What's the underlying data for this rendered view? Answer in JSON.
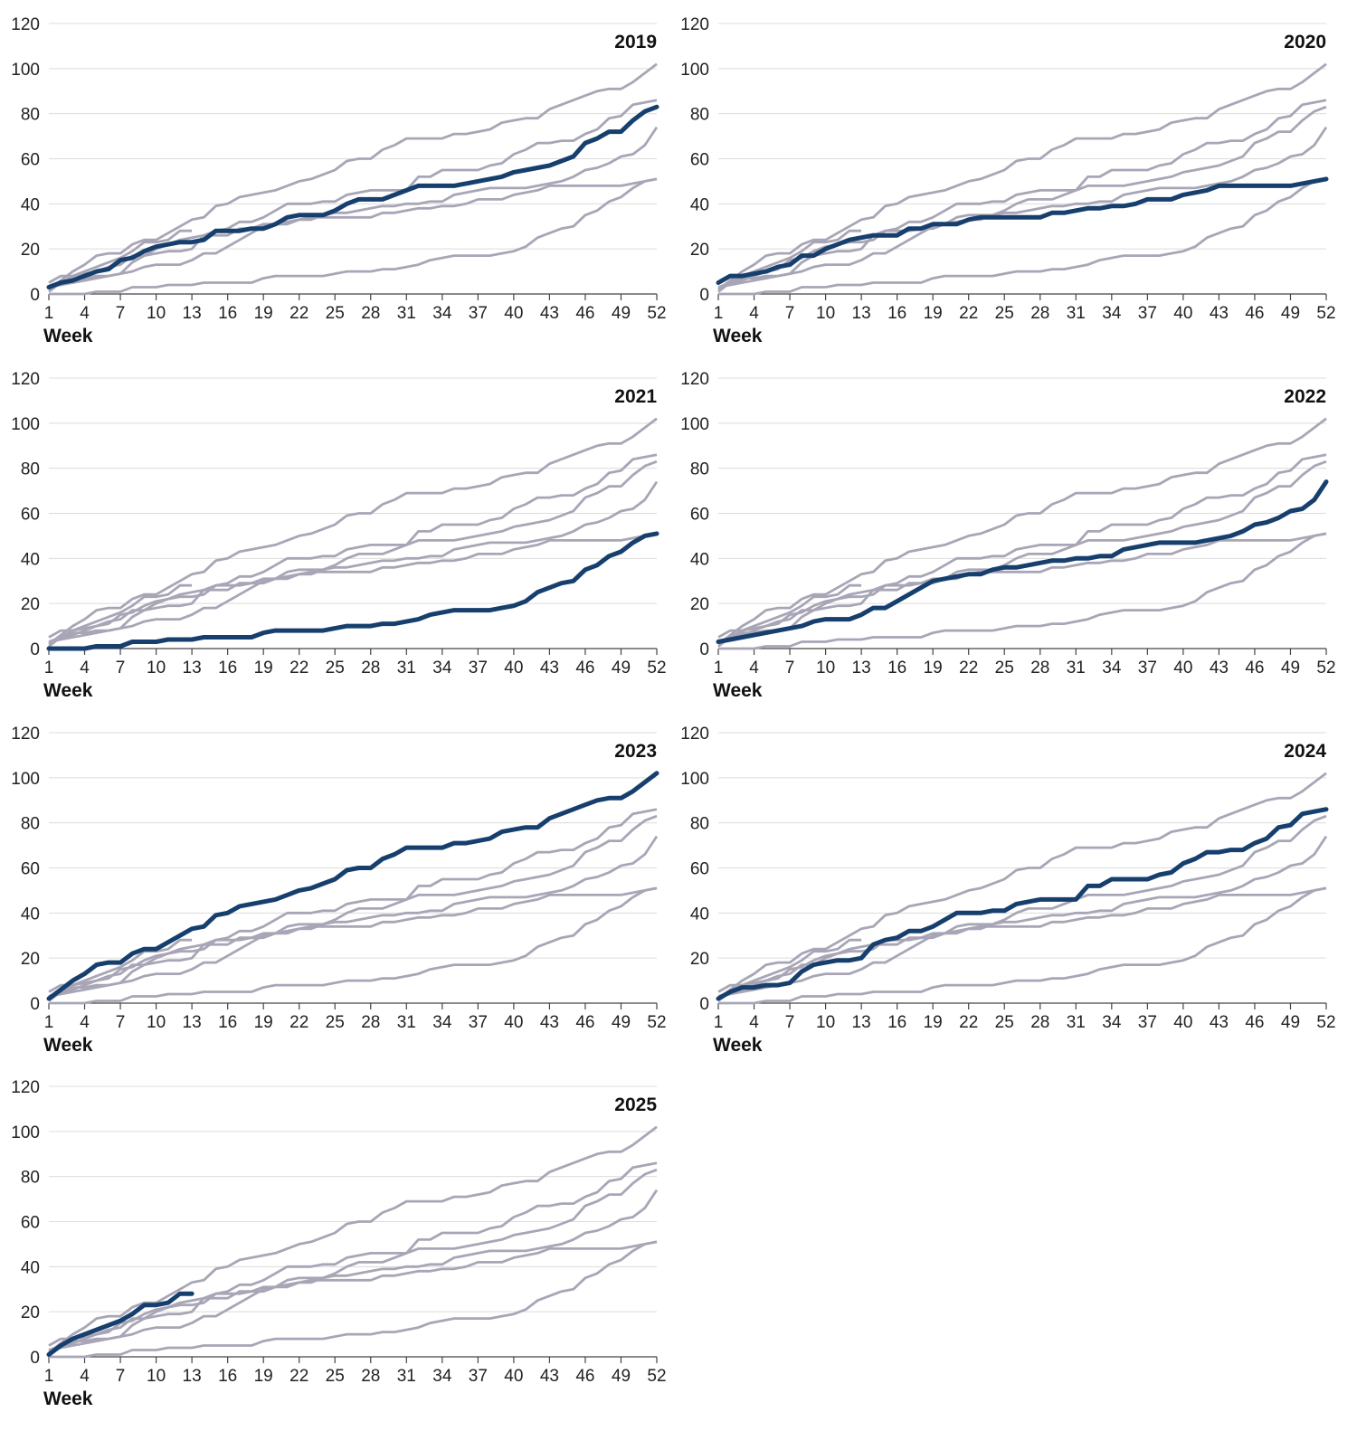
{
  "chart_data": {
    "type": "line",
    "xlabel": "Week",
    "ylabel": "",
    "ylim": [
      0,
      120
    ],
    "yticks": [
      0,
      20,
      40,
      60,
      80,
      100,
      120
    ],
    "xlim": [
      1,
      52
    ],
    "xticks": [
      1,
      4,
      7,
      10,
      13,
      16,
      19,
      22,
      25,
      28,
      31,
      34,
      37,
      40,
      43,
      46,
      49,
      52
    ],
    "grid": true,
    "layout": "small-multiples",
    "colors": {
      "highlight": "#163f6e",
      "other": "#a8a6b6",
      "grid": "#dcdcdc"
    },
    "panel_titles": [
      "2019",
      "2020",
      "2021",
      "2022",
      "2023",
      "2024",
      "2025"
    ],
    "series": [
      {
        "name": "2019",
        "x": [
          1,
          2,
          3,
          4,
          5,
          6,
          7,
          8,
          9,
          10,
          11,
          12,
          13,
          14,
          15,
          16,
          17,
          18,
          19,
          20,
          21,
          22,
          23,
          24,
          25,
          26,
          27,
          28,
          29,
          30,
          31,
          32,
          33,
          34,
          35,
          36,
          37,
          38,
          39,
          40,
          41,
          42,
          43,
          44,
          45,
          46,
          47,
          48,
          49,
          50,
          51,
          52
        ],
        "values": [
          3,
          5,
          6,
          8,
          10,
          11,
          15,
          16,
          19,
          21,
          22,
          23,
          23,
          24,
          28,
          28,
          28,
          29,
          29,
          31,
          34,
          35,
          35,
          35,
          37,
          40,
          42,
          42,
          42,
          44,
          46,
          48,
          48,
          48,
          48,
          49,
          50,
          51,
          52,
          54,
          55,
          56,
          57,
          59,
          61,
          67,
          69,
          72,
          72,
          77,
          81,
          83
        ]
      },
      {
        "name": "2020",
        "x": [
          1,
          2,
          3,
          4,
          5,
          6,
          7,
          8,
          9,
          10,
          11,
          12,
          13,
          14,
          15,
          16,
          17,
          18,
          19,
          20,
          21,
          22,
          23,
          24,
          25,
          26,
          27,
          28,
          29,
          30,
          31,
          32,
          33,
          34,
          35,
          36,
          37,
          38,
          39,
          40,
          41,
          42,
          43,
          44,
          45,
          46,
          47,
          48,
          49,
          50,
          51,
          52
        ],
        "values": [
          5,
          8,
          8,
          9,
          10,
          12,
          13,
          17,
          17,
          20,
          22,
          24,
          25,
          26,
          26,
          26,
          29,
          29,
          31,
          31,
          31,
          33,
          34,
          34,
          34,
          34,
          34,
          34,
          36,
          36,
          37,
          38,
          38,
          39,
          39,
          40,
          42,
          42,
          42,
          44,
          45,
          46,
          48,
          48,
          48,
          48,
          48,
          48,
          48,
          49,
          50,
          51
        ]
      },
      {
        "name": "2021",
        "x": [
          1,
          2,
          3,
          4,
          5,
          6,
          7,
          8,
          9,
          10,
          11,
          12,
          13,
          14,
          15,
          16,
          17,
          18,
          19,
          20,
          21,
          22,
          23,
          24,
          25,
          26,
          27,
          28,
          29,
          30,
          31,
          32,
          33,
          34,
          35,
          36,
          37,
          38,
          39,
          40,
          41,
          42,
          43,
          44,
          45,
          46,
          47,
          48,
          49,
          50,
          51,
          52
        ],
        "values": [
          0,
          0,
          0,
          0,
          1,
          1,
          1,
          3,
          3,
          3,
          4,
          4,
          4,
          5,
          5,
          5,
          5,
          5,
          7,
          8,
          8,
          8,
          8,
          8,
          9,
          10,
          10,
          10,
          11,
          11,
          12,
          13,
          15,
          16,
          17,
          17,
          17,
          17,
          18,
          19,
          21,
          25,
          27,
          29,
          30,
          35,
          37,
          41,
          43,
          47,
          50,
          51
        ]
      },
      {
        "name": "2022",
        "x": [
          1,
          2,
          3,
          4,
          5,
          6,
          7,
          8,
          9,
          10,
          11,
          12,
          13,
          14,
          15,
          16,
          17,
          18,
          19,
          20,
          21,
          22,
          23,
          24,
          25,
          26,
          27,
          28,
          29,
          30,
          31,
          32,
          33,
          34,
          35,
          36,
          37,
          38,
          39,
          40,
          41,
          42,
          43,
          44,
          45,
          46,
          47,
          48,
          49,
          50,
          51,
          52
        ],
        "values": [
          3,
          4,
          5,
          6,
          7,
          8,
          9,
          10,
          12,
          13,
          13,
          13,
          15,
          18,
          18,
          21,
          24,
          27,
          30,
          31,
          32,
          33,
          33,
          35,
          36,
          36,
          37,
          38,
          39,
          39,
          40,
          40,
          41,
          41,
          44,
          45,
          46,
          47,
          47,
          47,
          47,
          48,
          49,
          50,
          52,
          55,
          56,
          58,
          61,
          62,
          66,
          74
        ]
      },
      {
        "name": "2023",
        "x": [
          1,
          2,
          3,
          4,
          5,
          6,
          7,
          8,
          9,
          10,
          11,
          12,
          13,
          14,
          15,
          16,
          17,
          18,
          19,
          20,
          21,
          22,
          23,
          24,
          25,
          26,
          27,
          28,
          29,
          30,
          31,
          32,
          33,
          34,
          35,
          36,
          37,
          38,
          39,
          40,
          41,
          42,
          43,
          44,
          45,
          46,
          47,
          48,
          49,
          50,
          51,
          52
        ],
        "values": [
          2,
          6,
          10,
          13,
          17,
          18,
          18,
          22,
          24,
          24,
          27,
          30,
          33,
          34,
          39,
          40,
          43,
          44,
          45,
          46,
          48,
          50,
          51,
          53,
          55,
          59,
          60,
          60,
          64,
          66,
          69,
          69,
          69,
          69,
          71,
          71,
          72,
          73,
          76,
          77,
          78,
          78,
          82,
          84,
          86,
          88,
          90,
          91,
          91,
          94,
          98,
          102
        ]
      },
      {
        "name": "2024",
        "x": [
          1,
          2,
          3,
          4,
          5,
          6,
          7,
          8,
          9,
          10,
          11,
          12,
          13,
          14,
          15,
          16,
          17,
          18,
          19,
          20,
          21,
          22,
          23,
          24,
          25,
          26,
          27,
          28,
          29,
          30,
          31,
          32,
          33,
          34,
          35,
          36,
          37,
          38,
          39,
          40,
          41,
          42,
          43,
          44,
          45,
          46,
          47,
          48,
          49,
          50,
          51,
          52
        ],
        "values": [
          2,
          5,
          7,
          7,
          8,
          8,
          9,
          14,
          17,
          18,
          19,
          19,
          20,
          26,
          28,
          29,
          32,
          32,
          34,
          37,
          40,
          40,
          40,
          41,
          41,
          44,
          45,
          46,
          46,
          46,
          46,
          52,
          52,
          55,
          55,
          55,
          55,
          57,
          58,
          62,
          64,
          67,
          67,
          68,
          68,
          71,
          73,
          78,
          79,
          84,
          85,
          86
        ]
      },
      {
        "name": "2025",
        "x": [
          1,
          2,
          3,
          4,
          5,
          6,
          7,
          8,
          9,
          10,
          11,
          12,
          13
        ],
        "values": [
          1,
          5,
          8,
          10,
          12,
          14,
          16,
          19,
          23,
          23,
          24,
          28,
          28
        ]
      }
    ]
  }
}
